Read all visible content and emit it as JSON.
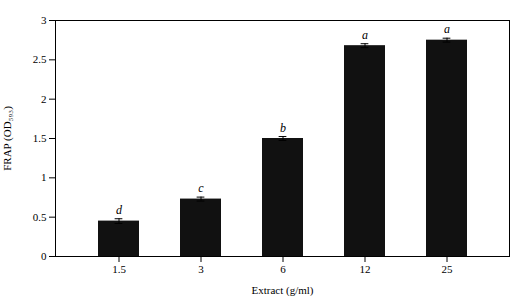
{
  "chart_data": {
    "type": "bar",
    "categories": [
      "1.5",
      "3",
      "6",
      "12",
      "25"
    ],
    "values": [
      0.45,
      0.73,
      1.5,
      2.68,
      2.75
    ],
    "errors": [
      0.03,
      0.025,
      0.025,
      0.025,
      0.025
    ],
    "letters": [
      "d",
      "c",
      "b",
      "a",
      "a"
    ],
    "color": "#111111",
    "xlabel": "Extract (g/ml)",
    "ylabel": "FRAP (OD₅₉₃)",
    "ylim": [
      0,
      3.0
    ],
    "yticks": [
      0,
      0.5,
      1.0,
      1.5,
      2.0,
      2.5,
      3.0
    ],
    "grid": false
  }
}
